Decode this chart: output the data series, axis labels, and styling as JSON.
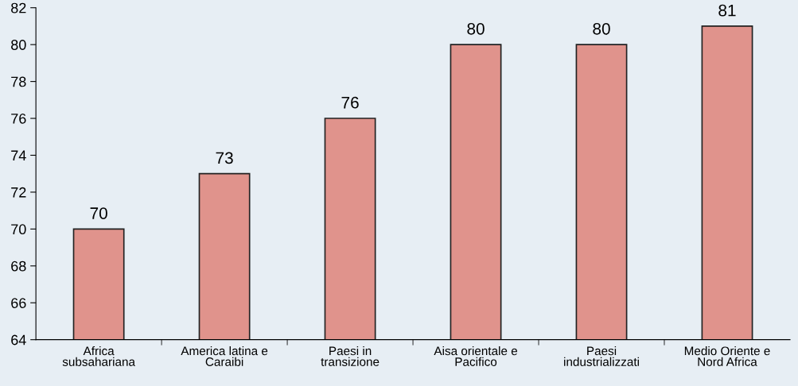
{
  "chart_data": {
    "type": "bar",
    "categories": [
      "Africa\nsubsahariana",
      "America latina e\nCaraibi",
      "Paesi in\ntransizione",
      "Aisa orientale e\nPacifico",
      "Paesi\nindustrializzati",
      "Medio Oriente e\nNord Africa"
    ],
    "values": [
      70,
      73,
      76,
      80,
      80,
      81
    ],
    "color": "#e0938c",
    "ylim": [
      64,
      82
    ],
    "yticks": [
      64,
      66,
      68,
      70,
      72,
      74,
      76,
      78,
      80,
      82
    ],
    "data_labels": true,
    "grid": false,
    "legend": false
  }
}
